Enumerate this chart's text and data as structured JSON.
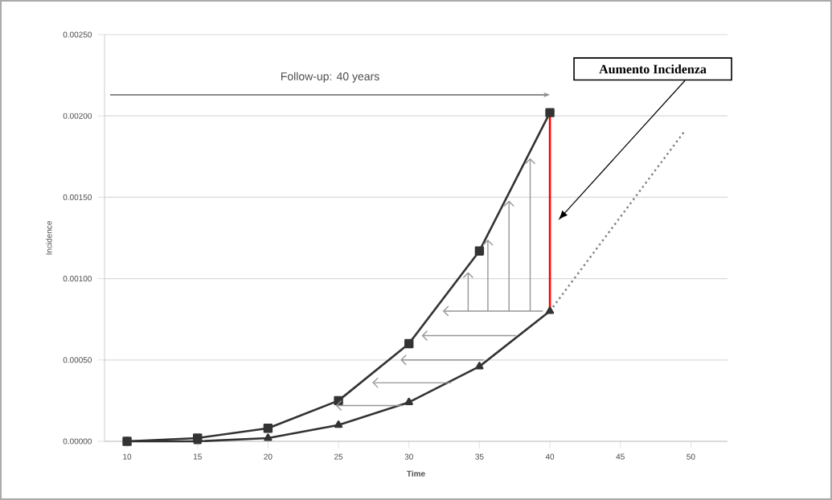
{
  "chart_data": {
    "type": "line",
    "xlabel": "Time",
    "ylabel": "Incidence",
    "xlim": [
      8.4,
      52.6
    ],
    "xticks": [
      10,
      15,
      20,
      25,
      30,
      35,
      40,
      45,
      50
    ],
    "ylim": [
      0,
      0.0025
    ],
    "yticks": [
      {
        "value": 0,
        "label": "0.00000"
      },
      {
        "value": 0.0005,
        "label": "0.00050"
      },
      {
        "value": 0.001,
        "label": "0.00100"
      },
      {
        "value": 0.0015,
        "label": "0.00150"
      },
      {
        "value": 0.002,
        "label": "0.00200"
      },
      {
        "value": 0.0025,
        "label": "0.00250"
      }
    ],
    "grid": "y",
    "series": [
      {
        "color": "#333333",
        "marker": "square",
        "line_style": "solid",
        "x": [
          10,
          15,
          20,
          25,
          30,
          35,
          40
        ],
        "values": [
          0,
          2e-05,
          8e-05,
          0.00025,
          0.0006,
          0.00117,
          0.00202
        ]
      },
      {
        "color": "#333333",
        "marker": "triangle",
        "line_style": "solid",
        "x": [
          10,
          15,
          20,
          25,
          30,
          35,
          40
        ],
        "values": [
          0,
          0,
          2e-05,
          0.0001,
          0.00024,
          0.00046,
          0.0008
        ]
      },
      {
        "color": "#808080",
        "marker": "none",
        "line_style": "dotted",
        "x": [
          40,
          49.5
        ],
        "values": [
          0.0008,
          0.0019
        ]
      },
      {
        "color": "#ff0000",
        "marker": "none",
        "line_style": "solid",
        "x": [
          40,
          40
        ],
        "values": [
          0.0008,
          0.00202
        ]
      }
    ],
    "annotations": [
      "Follow-up: 40 years",
      "Aumento Incidenza"
    ]
  }
}
